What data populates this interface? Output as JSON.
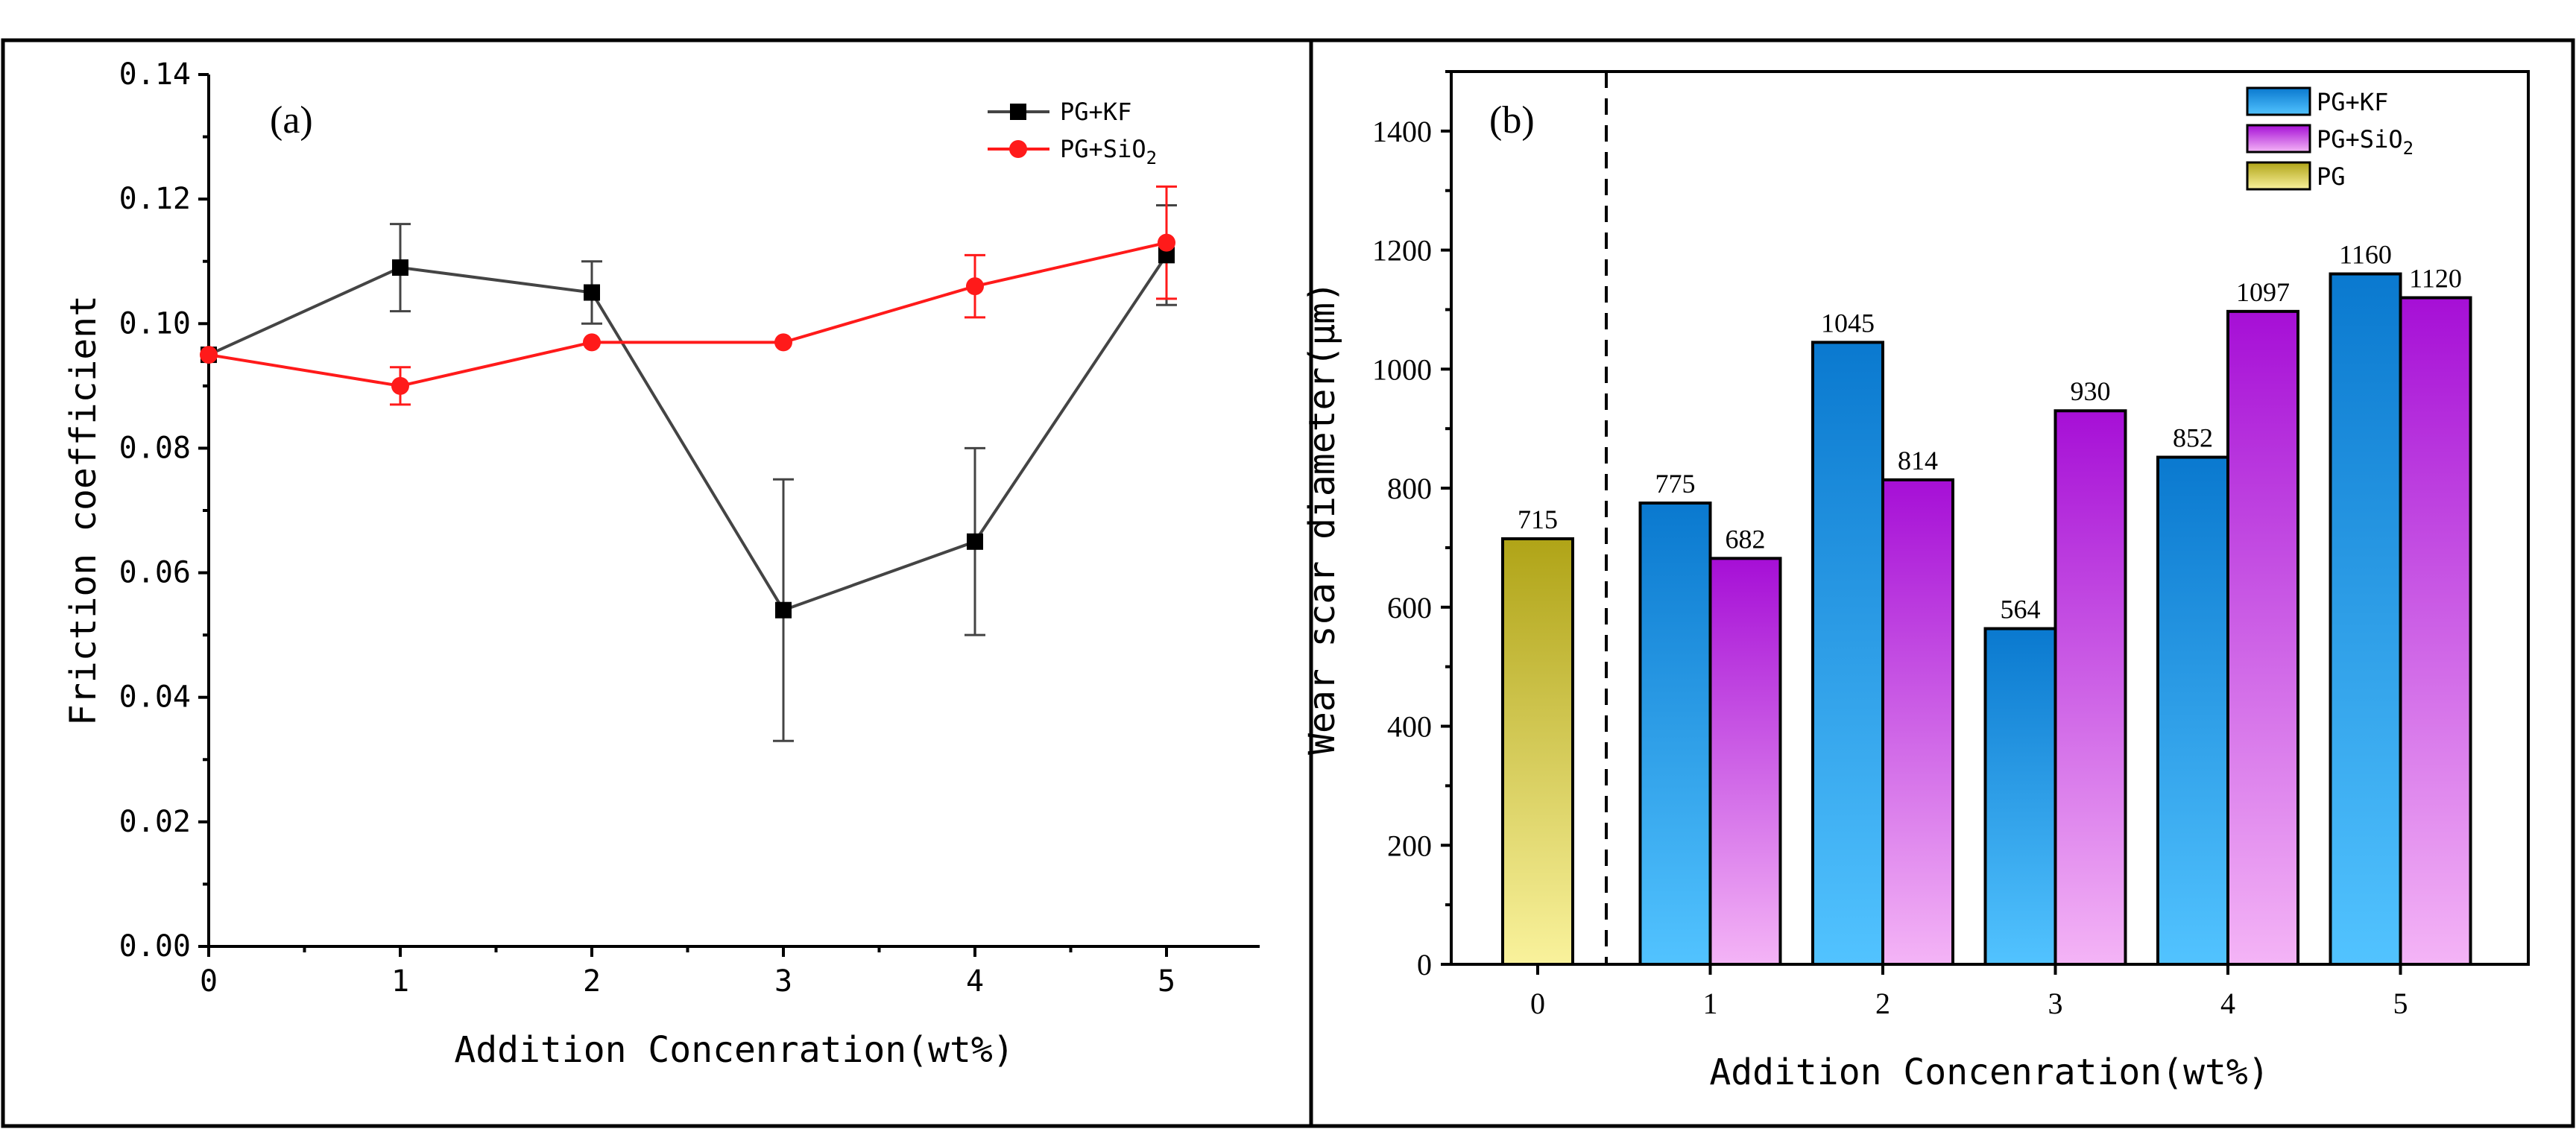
{
  "chart_data": [
    {
      "type": "line",
      "panel_label": "(a)",
      "xlabel": "Addition Concenration(wt%)",
      "ylabel": "Friction coefficient",
      "x": [
        0,
        1,
        2,
        3,
        4,
        5
      ],
      "xlim": [
        0,
        5.5
      ],
      "ylim": [
        0,
        0.14
      ],
      "xticks": [
        "0",
        "1",
        "2",
        "3",
        "4",
        "5"
      ],
      "yticks": [
        "0.00",
        "0.02",
        "0.04",
        "0.06",
        "0.08",
        "0.10",
        "0.12",
        "0.14"
      ],
      "legend_position": "top-right",
      "series": [
        {
          "name": "PG+KF",
          "legend_base": "PG+KF",
          "legend_sub": "",
          "color": "#444444",
          "marker": "square",
          "values": [
            0.095,
            0.109,
            0.105,
            0.054,
            0.065,
            0.111
          ],
          "errors": [
            0,
            0.007,
            0.005,
            0.021,
            0.015,
            0.008
          ]
        },
        {
          "name": "PG+SiO2",
          "legend_base": "PG+SiO",
          "legend_sub": "2",
          "color": "#ff1a1a",
          "marker": "circle",
          "values": [
            0.095,
            0.09,
            0.097,
            0.097,
            0.106,
            0.113
          ],
          "errors": [
            0,
            0.003,
            0,
            0,
            0.005,
            0.009
          ]
        }
      ]
    },
    {
      "type": "bar",
      "panel_label": "(b)",
      "xlabel": "Addition Concenration(wt%)",
      "ylabel": "Wear scar diameter(μm)",
      "categories": [
        "0",
        "1",
        "2",
        "3",
        "4",
        "5"
      ],
      "ylim": [
        0,
        1500
      ],
      "yticks": [
        "0",
        "200",
        "400",
        "600",
        "800",
        "1000",
        "1200",
        "1400"
      ],
      "legend_position": "top-right",
      "series": [
        {
          "name": "PG+KF",
          "legend_base": "PG+KF",
          "legend_sub": "",
          "color_top": "#0a79cf",
          "color_bottom": "#52c3ff",
          "values": [
            null,
            775,
            1045,
            564,
            852,
            1160
          ]
        },
        {
          "name": "PG+SiO2",
          "legend_base": "PG+SiO",
          "legend_sub": "2",
          "color_top": "#a60fd6",
          "color_bottom": "#f4b4f6",
          "values": [
            null,
            682,
            814,
            930,
            1097,
            1120
          ]
        },
        {
          "name": "PG",
          "legend_base": "PG",
          "legend_sub": "",
          "color_top": "#b0a417",
          "color_bottom": "#f9f29c",
          "values": [
            715,
            null,
            null,
            null,
            null,
            null
          ]
        }
      ],
      "data_labels": {
        "PG": [
          "715"
        ],
        "PG+KF": [
          "775",
          "1045",
          "564",
          "852",
          "1160"
        ],
        "PG+SiO2": [
          "682",
          "814",
          "930",
          "1097",
          "1120"
        ]
      }
    }
  ]
}
